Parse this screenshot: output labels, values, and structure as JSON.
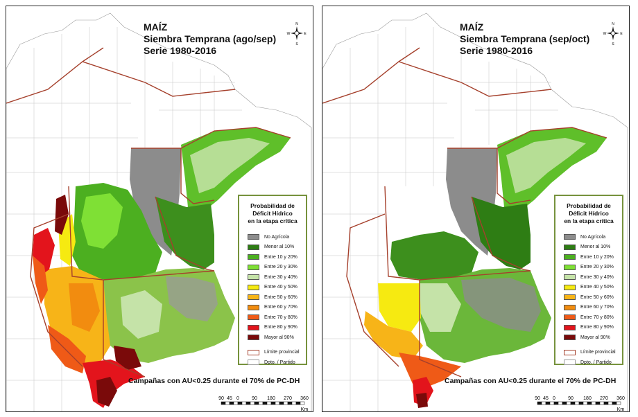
{
  "panels": [
    {
      "title_line1": "MAÍZ",
      "title_line2": "Siembra Temprana (ago/sep)",
      "title_line3": "Serie 1980-2016"
    },
    {
      "title_line1": "MAÍZ",
      "title_line2": "Siembra Temprana (sep/oct)",
      "title_line3": "Serie 1980-2016"
    }
  ],
  "legend": {
    "title_line1": "Probabilidad de",
    "title_line2": "Déficit Hídrico",
    "title_line3": "en la etapa crítica",
    "items": [
      {
        "label": "No Agrícola",
        "color": "#8c8c8c"
      },
      {
        "label": "Menor al 10%",
        "color": "#2e7d14"
      },
      {
        "label": "Entre 10 y 20%",
        "color": "#4caf20"
      },
      {
        "label": "Entre 20 y 30%",
        "color": "#7fe035"
      },
      {
        "label": "Entre 30 y 40%",
        "color": "#c5e3a8"
      },
      {
        "label": "Entre 40 y 50%",
        "color": "#f6ea11"
      },
      {
        "label": "Entre 50 y 60%",
        "color": "#f7b418"
      },
      {
        "label": "Entre 60 y 70%",
        "color": "#f28c0f"
      },
      {
        "label": "Entre 70 y 80%",
        "color": "#ef5a17"
      },
      {
        "label": "Entre 80 y 90%",
        "color": "#e3141c"
      },
      {
        "label": "Mayor al 90%",
        "color": "#7a0a0a"
      }
    ],
    "boundary_items": [
      {
        "label": "Límite provincial",
        "color": "#a5402c"
      },
      {
        "label": "Dpto. / Partido",
        "color": "#9a9a9a"
      }
    ]
  },
  "caption": "Campañas con AU<0.25 durante el 70% de PC-DH",
  "scalebar": {
    "labels": [
      "90",
      "45",
      "0",
      "90",
      "180",
      "270",
      "360"
    ],
    "unit": "Km"
  },
  "compass": {
    "n": "N",
    "s": "S",
    "e": "E",
    "w": "W"
  }
}
